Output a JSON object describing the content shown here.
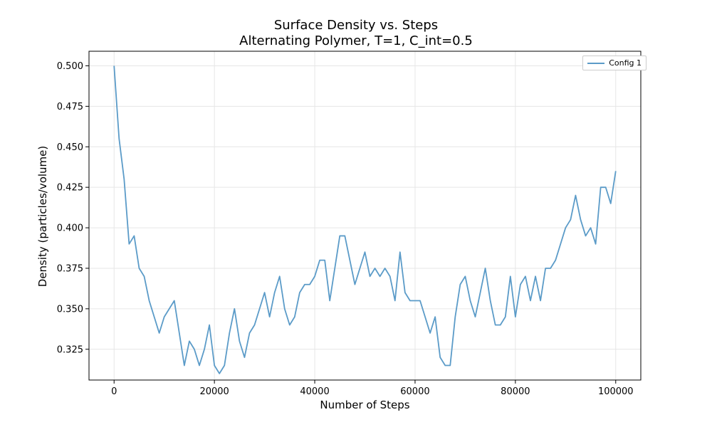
{
  "chart_data": {
    "type": "line",
    "title": "Surface Density vs. Steps",
    "subtitle": "Alternating Polymer, T=1, C_int=0.5",
    "xlabel": "Number of Steps",
    "ylabel": "Density (particles/volume)",
    "xlim": [
      -5000,
      105000
    ],
    "ylim": [
      0.306,
      0.509
    ],
    "x_ticks": [
      0,
      20000,
      40000,
      60000,
      80000,
      100000
    ],
    "y_ticks": [
      0.325,
      0.35,
      0.375,
      0.4,
      0.425,
      0.45,
      0.475,
      0.5
    ],
    "grid": true,
    "legend_position": "top-right",
    "series": [
      {
        "name": "Config 1",
        "color": "#5b9bc8",
        "x": [
          0,
          1000,
          2000,
          3000,
          4000,
          5000,
          6000,
          7000,
          8000,
          9000,
          10000,
          11000,
          12000,
          13000,
          14000,
          15000,
          16000,
          17000,
          18000,
          19000,
          20000,
          21000,
          22000,
          23000,
          24000,
          25000,
          26000,
          27000,
          28000,
          29000,
          30000,
          31000,
          32000,
          33000,
          34000,
          35000,
          36000,
          37000,
          38000,
          39000,
          40000,
          41000,
          42000,
          43000,
          44000,
          45000,
          46000,
          47000,
          48000,
          49000,
          50000,
          51000,
          52000,
          53000,
          54000,
          55000,
          56000,
          57000,
          58000,
          59000,
          60000,
          61000,
          62000,
          63000,
          64000,
          65000,
          66000,
          67000,
          68000,
          69000,
          70000,
          71000,
          72000,
          73000,
          74000,
          75000,
          76000,
          77000,
          78000,
          79000,
          80000,
          81000,
          82000,
          83000,
          84000,
          85000,
          86000,
          87000,
          88000,
          89000,
          90000,
          91000,
          92000,
          93000,
          94000,
          95000,
          96000,
          97000,
          98000,
          99000,
          100000
        ],
        "y": [
          0.5,
          0.455,
          0.43,
          0.39,
          0.395,
          0.375,
          0.37,
          0.355,
          0.345,
          0.335,
          0.345,
          0.35,
          0.355,
          0.335,
          0.315,
          0.33,
          0.325,
          0.315,
          0.325,
          0.34,
          0.315,
          0.31,
          0.315,
          0.335,
          0.35,
          0.33,
          0.32,
          0.335,
          0.34,
          0.35,
          0.36,
          0.345,
          0.36,
          0.37,
          0.35,
          0.34,
          0.345,
          0.36,
          0.365,
          0.365,
          0.37,
          0.38,
          0.38,
          0.355,
          0.375,
          0.395,
          0.395,
          0.38,
          0.365,
          0.375,
          0.385,
          0.37,
          0.375,
          0.37,
          0.375,
          0.37,
          0.355,
          0.385,
          0.36,
          0.355,
          0.355,
          0.355,
          0.345,
          0.335,
          0.345,
          0.32,
          0.315,
          0.315,
          0.345,
          0.365,
          0.37,
          0.355,
          0.345,
          0.36,
          0.375,
          0.355,
          0.34,
          0.34,
          0.345,
          0.37,
          0.345,
          0.365,
          0.37,
          0.355,
          0.37,
          0.355,
          0.375,
          0.375,
          0.38,
          0.39,
          0.4,
          0.405,
          0.42,
          0.405,
          0.395,
          0.4,
          0.39,
          0.425,
          0.425,
          0.415,
          0.435
        ]
      }
    ]
  }
}
